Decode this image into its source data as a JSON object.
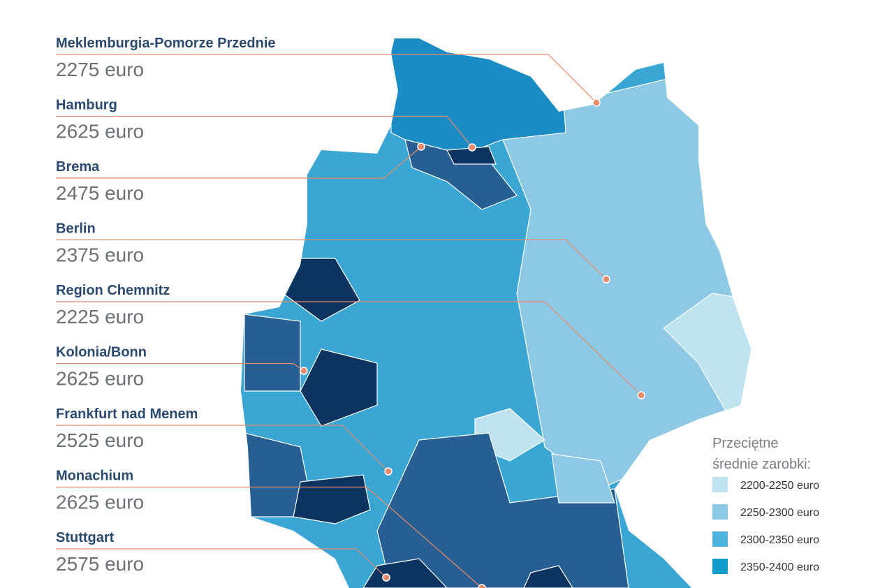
{
  "regions": [
    {
      "name": "Meklemburgia-Pomorze Przednie",
      "value": "2275 euro"
    },
    {
      "name": "Hamburg",
      "value": "2625 euro"
    },
    {
      "name": "Brema",
      "value": "2475 euro"
    },
    {
      "name": "Berlin",
      "value": "2375 euro"
    },
    {
      "name": "Region Chemnitz",
      "value": "2225 euro"
    },
    {
      "name": "Kolonia/Bonn",
      "value": "2625 euro"
    },
    {
      "name": "Frankfurt nad Menem",
      "value": "2525 euro"
    },
    {
      "name": "Monachium",
      "value": "2625 euro"
    },
    {
      "name": "Stuttgart",
      "value": "2575 euro"
    }
  ],
  "legend": {
    "title_lines": [
      "Przeciętne",
      "średnie zarobki:"
    ],
    "items": [
      {
        "label": "2200-2250 euro",
        "color": "#bfe3ef"
      },
      {
        "label": "2250-2300 euro",
        "color": "#8dc9e4"
      },
      {
        "label": "2300-2350 euro",
        "color": "#4db2dc"
      },
      {
        "label": "2350-2400 euro",
        "color": "#0f9bcc"
      }
    ]
  }
}
